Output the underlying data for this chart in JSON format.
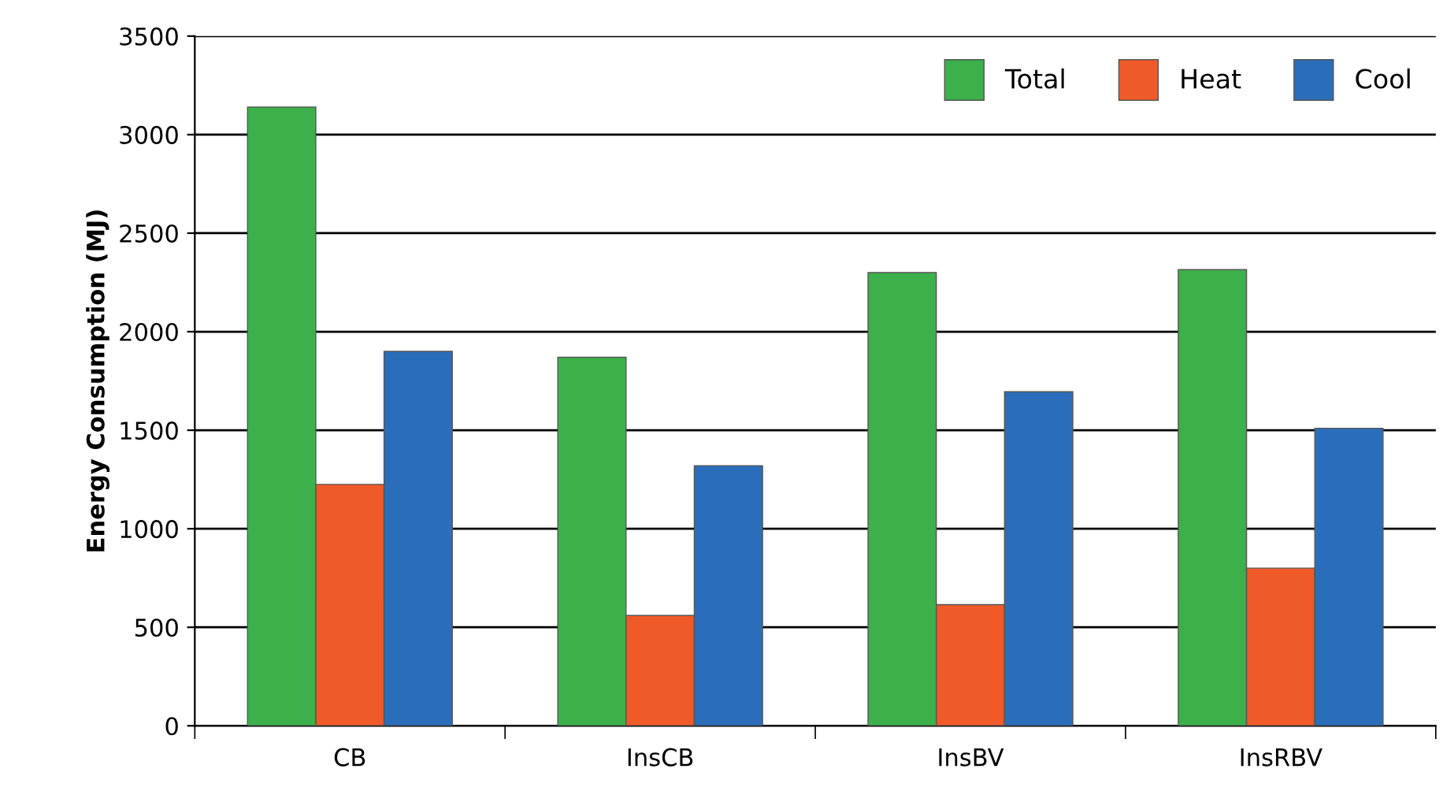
{
  "chart_data": {
    "type": "bar",
    "ylabel": "Energy Consumption (MJ)",
    "categories": [
      "CB",
      "InsCB",
      "InsBV",
      "InsRBV"
    ],
    "series": [
      {
        "name": "Total",
        "color": "#3cb04a",
        "values": [
          3140,
          1870,
          2300,
          2315
        ]
      },
      {
        "name": "Heat",
        "color": "#f05a28",
        "values": [
          1225,
          560,
          615,
          800
        ]
      },
      {
        "name": "Cool",
        "color": "#2a6ebb",
        "values": [
          1900,
          1320,
          1695,
          1510
        ]
      }
    ],
    "ylim": [
      0,
      3500
    ],
    "yticks": [
      0,
      500,
      1000,
      1500,
      2000,
      2500,
      3000,
      3500
    ],
    "grid": "y",
    "legend": "top right"
  }
}
